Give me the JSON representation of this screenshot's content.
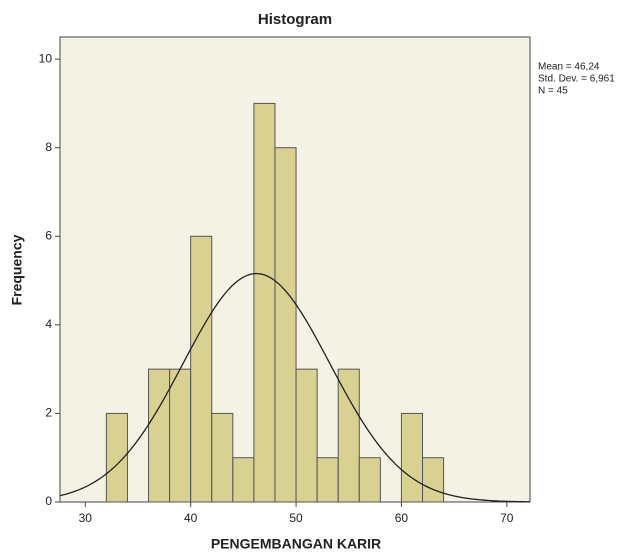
{
  "chart_data": {
    "type": "histogram",
    "title": "Histogram",
    "x_label": "PENGEMBANGAN KARIR",
    "y_label": "Frequency",
    "bins": [
      32,
      34,
      36,
      38,
      40,
      42,
      44,
      46,
      48,
      50,
      52,
      54,
      56,
      58,
      60,
      62,
      64
    ],
    "counts": [
      2,
      0,
      3,
      3,
      6,
      2,
      1,
      9,
      8,
      3,
      1,
      3,
      1,
      0,
      2,
      1
    ],
    "color": "#d3cb84",
    "edge_color": "#555555",
    "curve_color": "#222222",
    "xlim": [
      27.6,
      72.2
    ],
    "xticks": [
      30,
      40,
      50,
      60,
      70
    ],
    "ylim": [
      0,
      10.5
    ],
    "yticks": [
      0,
      2,
      4,
      6,
      8,
      10
    ],
    "stats": {
      "values": [
        46.24,
        6.961,
        45
      ],
      "value_labels": [
        "Mean = 46,24",
        "Std. Dev. = 6,961",
        "N = 45"
      ]
    }
  }
}
